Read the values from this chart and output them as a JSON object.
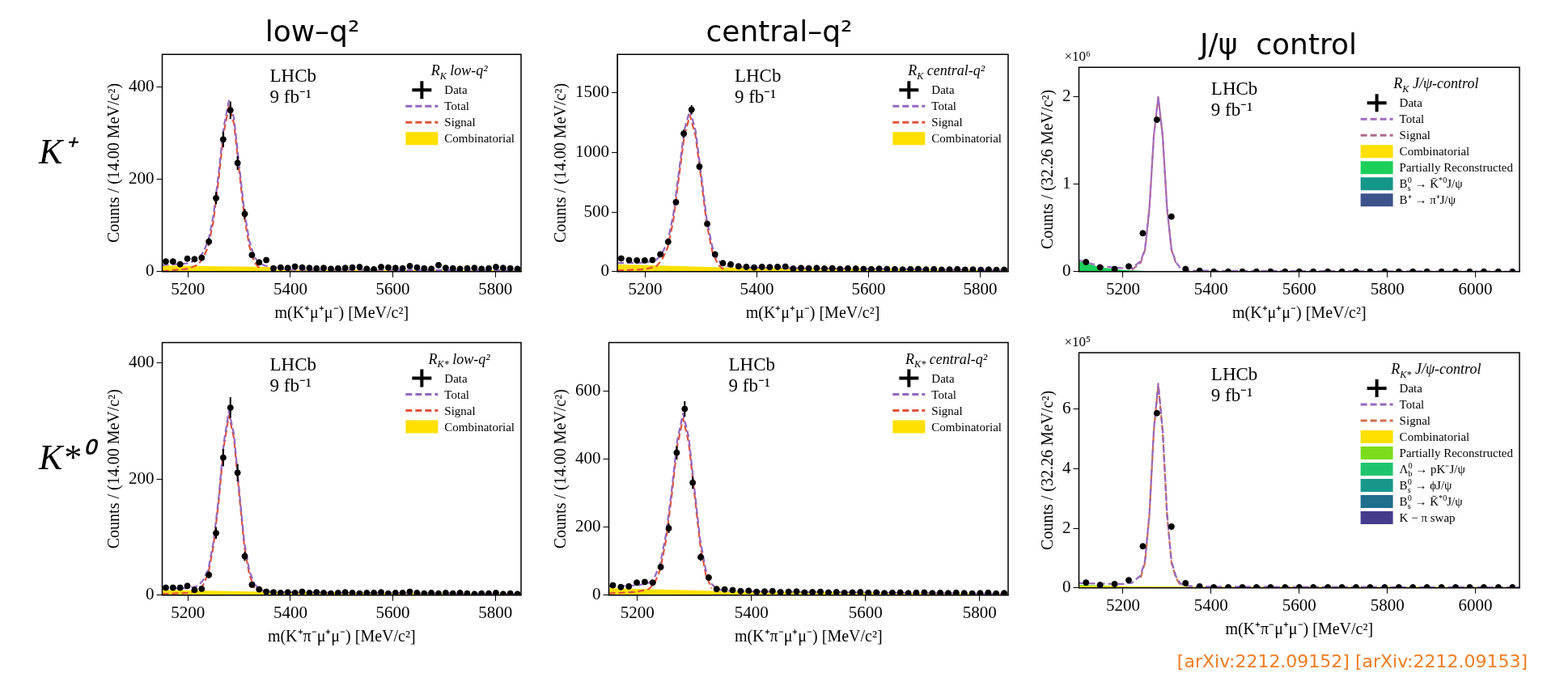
{
  "chart_data": [
    {
      "type": "scatter",
      "title": "low–q²",
      "xlabel": "m(K⁺μ⁺μ⁻) [MeV/c²]",
      "ylabel": "Counts / (14.00 MeV/c²)",
      "legend_title": "R$_{K}$ low-q²",
      "legend": "top right",
      "annotations": [
        "LHCb",
        "9 fb⁻¹",
        "K⁺"
      ],
      "xlim": [
        5150,
        5850
      ],
      "xticks": [
        5200,
        5400,
        5600,
        5800
      ],
      "ylim": [
        0,
        470
      ],
      "yticks": [
        0,
        200,
        400
      ],
      "series": [
        {
          "name": "Data",
          "marker": "circle",
          "color": "#000000",
          "x": [
            5157,
            5171,
            5185,
            5199,
            5213,
            5227,
            5241,
            5255,
            5269,
            5283,
            5297,
            5311,
            5325,
            5339,
            5353,
            5367,
            5381,
            5395,
            5409,
            5423,
            5437,
            5451,
            5465,
            5479,
            5493,
            5507,
            5521,
            5535,
            5549,
            5563,
            5577,
            5591,
            5605,
            5619,
            5633,
            5647,
            5661,
            5675,
            5689,
            5703,
            5717,
            5731,
            5745,
            5759,
            5773,
            5787,
            5801,
            5815,
            5829,
            5843
          ],
          "values": [
            22,
            22,
            16,
            28,
            27,
            30,
            65,
            159,
            286,
            349,
            235,
            125,
            36,
            20,
            25,
            7,
            9,
            8,
            11,
            9,
            8,
            7,
            8,
            6,
            7,
            8,
            9,
            10,
            6,
            5,
            10,
            9,
            8,
            7,
            12,
            9,
            7,
            6,
            14,
            8,
            7,
            6,
            7,
            8,
            6,
            7,
            10,
            8,
            7,
            6
          ],
          "errors": [
            null,
            null,
            null,
            null,
            null,
            null,
            8,
            13,
            17,
            19,
            15,
            11,
            null,
            null,
            null,
            null,
            null,
            null,
            null,
            null,
            null,
            null,
            null,
            null,
            null,
            null,
            null,
            null,
            null,
            null,
            null,
            null,
            null,
            null,
            null,
            null,
            null,
            null,
            null,
            null,
            null,
            null,
            null,
            null,
            null,
            null,
            null,
            null,
            null,
            null
          ]
        },
        {
          "name": "Total",
          "type": "line",
          "line_style": "dashed",
          "color": "#9467bd",
          "x": [
            5150,
            5200,
            5220,
            5230,
            5240,
            5250,
            5260,
            5270,
            5280,
            5290,
            5300,
            5310,
            5320,
            5330,
            5340,
            5350,
            5360,
            5400,
            5850
          ],
          "values": [
            14,
            18,
            27,
            42,
            67,
            122,
            212,
            312,
            370,
            332,
            232,
            132,
            66,
            31,
            18,
            13,
            11,
            4,
            3
          ]
        },
        {
          "name": "Signal",
          "type": "line",
          "line_style": "dashed",
          "color": "#e0533a",
          "x": [
            5150,
            5200,
            5220,
            5230,
            5240,
            5250,
            5260,
            5270,
            5280,
            5290,
            5300,
            5310,
            5320,
            5330,
            5340
          ],
          "values": [
            1,
            6,
            15,
            30,
            55,
            110,
            200,
            300,
            358,
            320,
            220,
            120,
            55,
            20,
            7
          ]
        },
        {
          "name": "Combinatorial",
          "type": "area",
          "color": "#ffe000",
          "x": [
            5150,
            5360,
            5361,
            5850
          ],
          "values": [
            13,
            10,
            4,
            3
          ]
        }
      ]
    },
    {
      "type": "scatter",
      "title": "central–q²",
      "xlabel": "m(K⁺μ⁺μ⁻) [MeV/c²]",
      "ylabel": "Counts / (14.00 MeV/c²)",
      "legend_title": "R$_{K}$ central-q²",
      "legend": "top right",
      "annotations": [
        "LHCb",
        "9 fb⁻¹"
      ],
      "xlim": [
        5150,
        5850
      ],
      "xticks": [
        5200,
        5400,
        5600,
        5800
      ],
      "ylim": [
        0,
        1820
      ],
      "yticks": [
        0,
        500,
        1000,
        1500
      ],
      "series": [
        {
          "name": "Data",
          "marker": "circle",
          "color": "#000000",
          "x": [
            5157,
            5171,
            5185,
            5199,
            5213,
            5227,
            5241,
            5255,
            5269,
            5283,
            5297,
            5311,
            5325,
            5339,
            5353,
            5367,
            5381,
            5395,
            5409,
            5423,
            5437,
            5451,
            5465,
            5479,
            5493,
            5507,
            5521,
            5535,
            5549,
            5563,
            5577,
            5591,
            5605,
            5619,
            5633,
            5647,
            5661,
            5675,
            5689,
            5703,
            5717,
            5731,
            5745,
            5759,
            5773,
            5787,
            5801,
            5815,
            5829,
            5843
          ],
          "values": [
            110,
            97,
            94,
            94,
            97,
            145,
            250,
            582,
            1156,
            1357,
            880,
            400,
            145,
            71,
            61,
            45,
            40,
            35,
            40,
            38,
            40,
            42,
            25,
            30,
            28,
            30,
            25,
            28,
            22,
            27,
            25,
            22,
            20,
            24,
            22,
            20,
            18,
            20,
            22,
            18,
            20,
            16,
            18,
            20,
            16,
            18,
            15,
            17,
            14,
            16
          ],
          "errors": [
            null,
            null,
            null,
            null,
            null,
            null,
            null,
            24,
            34,
            37,
            30,
            20,
            null,
            null,
            null,
            null,
            null,
            null,
            null,
            null,
            null,
            null,
            null,
            null,
            null,
            null,
            null,
            null,
            null,
            null,
            null,
            null,
            null,
            null,
            null,
            null,
            null,
            null,
            null,
            null,
            null,
            null,
            null,
            null,
            null,
            null,
            null,
            null,
            null,
            null
          ]
        },
        {
          "name": "Total",
          "type": "line",
          "line_style": "dashed",
          "color": "#9467bd",
          "x": [
            5150,
            5200,
            5220,
            5230,
            5240,
            5250,
            5260,
            5270,
            5280,
            5290,
            5300,
            5310,
            5320,
            5330,
            5340,
            5350,
            5360,
            5400,
            5850
          ],
          "values": [
            72,
            75,
            98,
            151,
            250,
            469,
            827,
            1186,
            1355,
            1183,
            822,
            441,
            209,
            96,
            56,
            43,
            38,
            33,
            10
          ]
        },
        {
          "name": "Signal",
          "type": "line",
          "line_style": "dashed",
          "color": "#e0533a",
          "x": [
            5150,
            5200,
            5220,
            5230,
            5240,
            5250,
            5260,
            5270,
            5280,
            5290,
            5300,
            5310,
            5320,
            5330,
            5340
          ],
          "values": [
            10,
            20,
            45,
            100,
            200,
            420,
            780,
            1140,
            1310,
            1140,
            780,
            400,
            170,
            60,
            20
          ]
        },
        {
          "name": "Combinatorial",
          "type": "area",
          "color": "#ffe000",
          "x": [
            5150,
            5350,
            5850
          ],
          "values": [
            62,
            35,
            10
          ]
        }
      ]
    },
    {
      "type": "scatter",
      "title": "J/ψ  control",
      "xlabel": "m(K⁺μ⁺μ⁻) [MeV/c²]",
      "ylabel": "Counts / (32.26 MeV/c²)",
      "legend_title": "R$_{K}$ J/ψ-control",
      "legend": "top right",
      "annotations": [
        "LHCb",
        "9 fb⁻¹",
        "×10⁶"
      ],
      "xlim": [
        5100,
        6100
      ],
      "xticks": [
        5200,
        5400,
        5600,
        5800,
        6000
      ],
      "ylim": [
        0,
        2.34
      ],
      "yticks": [
        0,
        1,
        2
      ],
      "series": [
        {
          "name": "Data",
          "marker": "circle",
          "color": "#000000",
          "x": [
            5116,
            5148,
            5181,
            5213,
            5245,
            5277,
            5310,
            5342,
            5374,
            5406,
            5439,
            5471,
            5503,
            5535,
            5568,
            5600,
            5632,
            5665,
            5697,
            5729,
            5761,
            5794,
            5826,
            5858,
            5890,
            5923,
            5955,
            5987,
            6019,
            6052,
            6084
          ],
          "values": [
            0.11,
            0.05,
            0.03,
            0.06,
            0.44,
            1.74,
            0.63,
            0.03,
            0.01,
            0,
            0,
            0,
            0,
            0,
            0,
            0,
            0,
            0,
            0,
            0,
            0,
            0,
            0,
            0,
            0,
            0,
            0,
            0,
            0,
            0,
            0
          ]
        },
        {
          "name": "Total",
          "type": "line",
          "line_style": "dashed",
          "color": "#a06cc0",
          "x": [
            5100,
            5150,
            5200,
            5220,
            5240,
            5250,
            5260,
            5270,
            5280,
            5290,
            5300,
            5310,
            5320,
            5330,
            5340,
            5360,
            5400,
            6100
          ],
          "values": [
            0.13,
            0.06,
            0.04,
            0.04,
            0.12,
            0.26,
            0.73,
            1.56,
            2.0,
            1.56,
            0.73,
            0.26,
            0.11,
            0.04,
            0.02,
            0.01,
            0.01,
            0
          ]
        },
        {
          "name": "Signal",
          "type": "line",
          "line_style": "dashed",
          "color": "#b0698f",
          "x": [
            5220,
            5240,
            5250,
            5260,
            5270,
            5280,
            5290,
            5300,
            5310,
            5320
          ],
          "values": [
            0.02,
            0.1,
            0.25,
            0.72,
            1.55,
            2.0,
            1.55,
            0.72,
            0.25,
            0.1
          ]
        },
        {
          "name": "Combinatorial",
          "type": "area",
          "color": "#ffe000"
        },
        {
          "name": "Partially Reconstructed",
          "type": "area",
          "color": "#1ccf5a",
          "x": [
            5100,
            5150,
            5200,
            5240,
            5300,
            6100
          ],
          "values": [
            0.12,
            0.05,
            0.02,
            0.01,
            0,
            0
          ]
        },
        {
          "name": "B$_{s}$$^{0}$ → K̄$^{*0}$J/ψ",
          "type": "area",
          "color": "#15968a"
        },
        {
          "name": "B⁺ → π⁺J/ψ",
          "type": "area",
          "color": "#3b528b"
        }
      ]
    },
    {
      "type": "scatter",
      "xlabel": "m(K⁺π⁻μ⁺μ⁻) [MeV/c²]",
      "ylabel": "Counts / (14.00 MeV/c²)",
      "legend_title": "R$_{K*}$ low-q²",
      "legend": "top right",
      "annotations": [
        "LHCb",
        "9 fb⁻¹",
        "K*⁰"
      ],
      "xlim": [
        5150,
        5850
      ],
      "xticks": [
        5200,
        5400,
        5600,
        5800
      ],
      "ylim": [
        0,
        435
      ],
      "yticks": [
        0,
        200,
        400
      ],
      "series": [
        {
          "name": "Data",
          "marker": "circle",
          "color": "#000000",
          "x": [
            5157,
            5171,
            5185,
            5199,
            5213,
            5227,
            5241,
            5255,
            5269,
            5283,
            5297,
            5311,
            5325,
            5339,
            5353,
            5367,
            5381,
            5395,
            5409,
            5423,
            5437,
            5451,
            5465,
            5479,
            5493,
            5507,
            5521,
            5535,
            5549,
            5563,
            5577,
            5591,
            5605,
            5619,
            5633,
            5647,
            5661,
            5675,
            5689,
            5703,
            5717,
            5731,
            5745,
            5759,
            5773,
            5787,
            5801,
            5815,
            5829,
            5843
          ],
          "values": [
            13,
            13,
            13,
            16,
            9,
            11,
            35,
            107,
            237,
            323,
            211,
            67,
            18,
            10,
            6,
            5,
            4,
            5,
            4,
            6,
            4,
            5,
            4,
            3,
            4,
            5,
            4,
            3,
            4,
            4,
            5,
            3,
            4,
            4,
            6,
            4,
            3,
            4,
            3,
            4,
            3,
            4,
            3,
            2,
            3,
            3,
            4,
            2,
            3,
            2
          ],
          "errors": [
            null,
            null,
            null,
            null,
            null,
            null,
            6,
            10,
            15,
            18,
            15,
            8,
            null,
            null,
            null,
            null,
            null,
            null,
            null,
            null,
            null,
            null,
            null,
            null,
            null,
            null,
            null,
            null,
            null,
            null,
            null,
            null,
            null,
            null,
            null,
            null,
            null,
            null,
            null,
            null,
            null,
            null,
            null,
            null,
            null,
            null,
            null,
            null,
            null,
            null
          ]
        },
        {
          "name": "Total",
          "type": "line",
          "line_style": "dashed",
          "color": "#9467bd",
          "x": [
            5150,
            5200,
            5220,
            5230,
            5240,
            5250,
            5260,
            5270,
            5280,
            5290,
            5300,
            5310,
            5320,
            5330,
            5340,
            5350,
            5360,
            5400,
            5850
          ],
          "values": [
            11,
            12,
            16,
            26,
            45,
            92,
            167,
            262,
            317,
            277,
            182,
            92,
            42,
            19,
            10,
            7,
            6,
            5,
            2
          ]
        },
        {
          "name": "Signal",
          "type": "line",
          "line_style": "dashed",
          "color": "#e0533a",
          "x": [
            5150,
            5200,
            5220,
            5230,
            5240,
            5250,
            5260,
            5270,
            5280,
            5290,
            5300,
            5310,
            5320,
            5330
          ],
          "values": [
            2,
            4,
            8,
            18,
            38,
            85,
            160,
            255,
            310,
            270,
            175,
            85,
            35,
            12
          ]
        },
        {
          "name": "Combinatorial",
          "type": "area",
          "color": "#ffe000",
          "x": [
            5150,
            5350,
            5850
          ],
          "values": [
            9,
            6,
            2
          ]
        }
      ]
    },
    {
      "type": "scatter",
      "xlabel": "m(K⁺π⁻μ⁺μ⁻) [MeV/c²]",
      "ylabel": "Counts / (14.00 MeV/c²)",
      "legend_title": "R$_{K*}$ central-q²",
      "legend": "top right",
      "annotations": [
        "LHCb",
        "9 fb⁻¹"
      ],
      "xlim": [
        5150,
        5850
      ],
      "xticks": [
        5200,
        5400,
        5600,
        5800
      ],
      "ylim": [
        0,
        743
      ],
      "yticks": [
        0,
        200,
        400,
        600
      ],
      "series": [
        {
          "name": "Data",
          "marker": "circle",
          "color": "#000000",
          "x": [
            5157,
            5171,
            5185,
            5199,
            5213,
            5227,
            5241,
            5255,
            5269,
            5283,
            5297,
            5311,
            5325,
            5339,
            5353,
            5367,
            5381,
            5395,
            5409,
            5423,
            5437,
            5451,
            5465,
            5479,
            5493,
            5507,
            5521,
            5535,
            5549,
            5563,
            5577,
            5591,
            5605,
            5619,
            5633,
            5647,
            5661,
            5675,
            5689,
            5703,
            5717,
            5731,
            5745,
            5759,
            5773,
            5787,
            5801,
            5815,
            5829,
            5843
          ],
          "values": [
            29,
            24,
            26,
            37,
            39,
            37,
            83,
            197,
            419,
            548,
            331,
            112,
            52,
            18,
            17,
            15,
            12,
            13,
            10,
            11,
            12,
            9,
            10,
            11,
            8,
            9,
            10,
            8,
            9,
            7,
            8,
            9,
            7,
            8,
            6,
            7,
            8,
            6,
            7,
            8,
            6,
            7,
            6,
            7,
            6,
            5,
            6,
            7,
            5,
            6
          ],
          "errors": [
            null,
            null,
            null,
            null,
            null,
            null,
            null,
            14,
            20,
            23,
            18,
            11,
            null,
            null,
            null,
            null,
            null,
            null,
            null,
            null,
            null,
            null,
            null,
            null,
            null,
            null,
            null,
            null,
            null,
            null,
            null,
            null,
            null,
            null,
            null,
            null,
            null,
            null,
            null,
            null,
            null,
            null,
            null,
            null,
            null,
            null,
            null,
            null,
            null,
            null
          ]
        },
        {
          "name": "Total",
          "type": "line",
          "line_style": "dashed",
          "color": "#9467bd",
          "x": [
            5150,
            5200,
            5220,
            5230,
            5240,
            5250,
            5260,
            5270,
            5280,
            5290,
            5300,
            5310,
            5320,
            5330,
            5340,
            5350,
            5360,
            5400,
            5850
          ],
          "values": [
            26,
            29,
            36,
            52,
            92,
            177,
            306,
            456,
            535,
            465,
            314,
            164,
            73,
            33,
            18,
            14,
            13,
            11,
            4
          ]
        },
        {
          "name": "Signal",
          "type": "line",
          "line_style": "dashed",
          "color": "#e0533a",
          "x": [
            5150,
            5200,
            5220,
            5230,
            5240,
            5250,
            5260,
            5270,
            5280,
            5290,
            5300,
            5310,
            5320,
            5330
          ],
          "values": [
            5,
            10,
            18,
            35,
            75,
            160,
            290,
            440,
            520,
            450,
            300,
            150,
            60,
            20
          ]
        },
        {
          "name": "Combinatorial",
          "type": "area",
          "color": "#ffe000",
          "x": [
            5150,
            5350,
            5850
          ],
          "values": [
            21,
            12,
            4
          ]
        }
      ]
    },
    {
      "type": "scatter",
      "xlabel": "m(K⁺π⁻μ⁺μ⁻) [MeV/c²]",
      "ylabel": "Counts / (32.26 MeV/c²)",
      "legend_title": "R$_{K*}$ J/ψ-control",
      "legend": "top right",
      "annotations": [
        "LHCb",
        "9 fb⁻¹",
        "×10⁵",
        "[arXiv:2212.09152] [arXiv:2212.09153]"
      ],
      "xlim": [
        5100,
        6100
      ],
      "xticks": [
        5200,
        5400,
        5600,
        5800,
        6000
      ],
      "ylim": [
        0,
        7.9
      ],
      "yticks": [
        0,
        2,
        4,
        6
      ],
      "series": [
        {
          "name": "Data",
          "marker": "circle",
          "color": "#000000",
          "x": [
            5116,
            5148,
            5181,
            5213,
            5245,
            5277,
            5310,
            5342,
            5374,
            5406,
            5439,
            5471,
            5503,
            5535,
            5568,
            5600,
            5632,
            5665,
            5697,
            5729,
            5761,
            5794,
            5826,
            5858,
            5890,
            5923,
            5955,
            5987,
            6019,
            6052,
            6084
          ],
          "values": [
            0.18,
            0.1,
            0.13,
            0.26,
            1.4,
            5.87,
            2.06,
            0.16,
            0.05,
            0.02,
            0.02,
            0.02,
            0.02,
            0.02,
            0.02,
            0.02,
            0.02,
            0.02,
            0.02,
            0.02,
            0.02,
            0.02,
            0.02,
            0.02,
            0.02,
            0.02,
            0.02,
            0.02,
            0.02,
            0.02,
            0.02
          ]
        },
        {
          "name": "Total",
          "type": "line",
          "line_style": "dashed",
          "color": "#9467bd",
          "x": [
            5100,
            5150,
            5200,
            5220,
            5240,
            5250,
            5260,
            5270,
            5280,
            5290,
            5300,
            5310,
            5320,
            5330,
            5340,
            5360,
            5400,
            6100
          ],
          "values": [
            0.16,
            0.14,
            0.13,
            0.17,
            0.42,
            0.92,
            2.5,
            5.32,
            6.86,
            5.32,
            2.5,
            0.9,
            0.39,
            0.15,
            0.08,
            0.05,
            0.04,
            0.02
          ]
        },
        {
          "name": "Signal",
          "type": "line",
          "line_style": "dashed",
          "color": "#d0704a",
          "x": [
            5240,
            5250,
            5260,
            5270,
            5280,
            5290,
            5300,
            5310,
            5320,
            5330
          ],
          "values": [
            0.34,
            0.85,
            2.45,
            5.27,
            6.8,
            5.27,
            2.45,
            0.85,
            0.34,
            0.1
          ]
        },
        {
          "name": "Combinatorial",
          "type": "area",
          "color": "#ffe000",
          "x": [
            5100,
            5300,
            5400,
            6100
          ],
          "values": [
            0.06,
            0.05,
            0.04,
            0.03
          ]
        },
        {
          "name": "Partially Reconstructed",
          "type": "area",
          "color": "#7cdc1c",
          "x": [
            5100,
            5150,
            5200,
            5250,
            5300,
            6100
          ],
          "values": [
            0.1,
            0.08,
            0.05,
            0.02,
            0,
            0
          ]
        },
        {
          "name": "Λ$_{b}$$^{0}$ → pK⁻J/ψ",
          "type": "area",
          "color": "#1fc46f"
        },
        {
          "name": "B$_{s}$$^{0}$ → ϕJ/ψ",
          "type": "area",
          "color": "#16978a"
        },
        {
          "name": "B$_{s}$$^{0}$ → K̄$^{*0}$J/ψ",
          "type": "area",
          "color": "#1f6e8c"
        },
        {
          "name": "K − π swap",
          "type": "area",
          "color": "#433d8b"
        }
      ]
    }
  ]
}
